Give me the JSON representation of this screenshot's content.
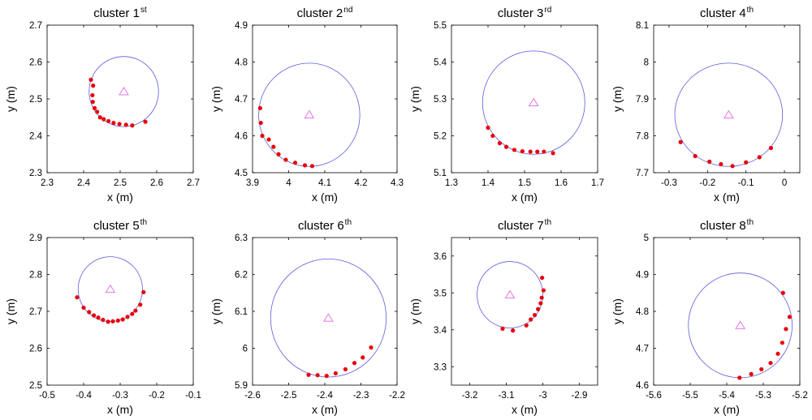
{
  "colors": {
    "point": "#e8000b",
    "circle": "#5b5bdc",
    "center": "#e066e0",
    "axis": "#000000"
  },
  "chart_data": [
    {
      "type": "scatter",
      "title": "cluster 1",
      "title_sup": "st",
      "xlabel": "x (m)",
      "ylabel": "y (m)",
      "xlim": [
        2.3,
        2.7
      ],
      "ylim": [
        2.3,
        2.7
      ],
      "xticks": [
        2.3,
        2.4,
        2.5,
        2.6,
        2.7
      ],
      "xtick_labels": [
        "2.3",
        "2.4",
        "2.5",
        "2.6",
        "2.7"
      ],
      "yticks": [
        2.3,
        2.4,
        2.5,
        2.6,
        2.7
      ],
      "ytick_labels": [
        "2.3",
        "2.4",
        "2.5",
        "2.6",
        "2.7"
      ],
      "circle": {
        "cx": 2.51,
        "cy": 2.52,
        "r": 0.095
      },
      "points": [
        [
          2.42,
          2.552
        ],
        [
          2.426,
          2.536
        ],
        [
          2.424,
          2.51
        ],
        [
          2.425,
          2.492
        ],
        [
          2.43,
          2.475
        ],
        [
          2.437,
          2.465
        ],
        [
          2.445,
          2.45
        ],
        [
          2.455,
          2.445
        ],
        [
          2.468,
          2.44
        ],
        [
          2.482,
          2.435
        ],
        [
          2.498,
          2.432
        ],
        [
          2.516,
          2.43
        ],
        [
          2.533,
          2.428
        ],
        [
          2.569,
          2.438
        ]
      ]
    },
    {
      "type": "scatter",
      "title": "cluster 2",
      "title_sup": "nd",
      "xlabel": "x (m)",
      "ylabel": "y (m)",
      "xlim": [
        3.9,
        4.3
      ],
      "ylim": [
        4.5,
        4.9
      ],
      "xticks": [
        3.9,
        4.0,
        4.1,
        4.2,
        4.3
      ],
      "xtick_labels": [
        "3.9",
        "4",
        "4.1",
        "4.2",
        "4.3"
      ],
      "yticks": [
        4.5,
        4.6,
        4.7,
        4.8,
        4.9
      ],
      "ytick_labels": [
        "4.5",
        "4.6",
        "4.7",
        "4.8",
        "4.9"
      ],
      "circle": {
        "cx": 4.057,
        "cy": 4.657,
        "r": 0.14
      },
      "points": [
        [
          3.921,
          4.675
        ],
        [
          3.923,
          4.635
        ],
        [
          3.927,
          4.6
        ],
        [
          3.945,
          4.59
        ],
        [
          3.958,
          4.57
        ],
        [
          3.972,
          4.55
        ],
        [
          3.992,
          4.535
        ],
        [
          4.018,
          4.527
        ],
        [
          4.045,
          4.52
        ],
        [
          4.065,
          4.518
        ]
      ]
    },
    {
      "type": "scatter",
      "title": "cluster 3",
      "title_sup": "rd",
      "xlabel": "x (m)",
      "ylabel": "y (m)",
      "xlim": [
        1.3,
        1.7
      ],
      "ylim": [
        5.1,
        5.5
      ],
      "xticks": [
        1.3,
        1.4,
        1.5,
        1.6,
        1.7
      ],
      "xtick_labels": [
        "1.3",
        "1.4",
        "1.5",
        "1.6",
        "1.7"
      ],
      "yticks": [
        5.1,
        5.2,
        5.3,
        5.4,
        5.5
      ],
      "ytick_labels": [
        "5.1",
        "5.2",
        "5.3",
        "5.4",
        "5.5"
      ],
      "circle": {
        "cx": 1.525,
        "cy": 5.29,
        "r": 0.14
      },
      "points": [
        [
          1.4,
          5.222
        ],
        [
          1.413,
          5.2
        ],
        [
          1.432,
          5.18
        ],
        [
          1.45,
          5.17
        ],
        [
          1.472,
          5.162
        ],
        [
          1.494,
          5.158
        ],
        [
          1.516,
          5.157
        ],
        [
          1.535,
          5.157
        ],
        [
          1.553,
          5.157
        ],
        [
          1.578,
          5.153
        ]
      ]
    },
    {
      "type": "scatter",
      "title": "cluster 4",
      "title_sup": "th",
      "xlabel": "x (m)",
      "ylabel": "y (m)",
      "xlim": [
        -0.34,
        0.04
      ],
      "ylim": [
        7.7,
        8.1
      ],
      "xticks": [
        -0.3,
        -0.2,
        -0.1,
        0.0
      ],
      "xtick_labels": [
        "-0.3",
        "-0.2",
        "-0.1",
        "0"
      ],
      "yticks": [
        7.7,
        7.8,
        7.9,
        8.0,
        8.1
      ],
      "ytick_labels": [
        "7.7",
        "7.8",
        "7.9",
        "8",
        "8.1"
      ],
      "circle": {
        "cx": -0.145,
        "cy": 7.857,
        "r": 0.14
      },
      "points": [
        [
          -0.27,
          7.783
        ],
        [
          -0.232,
          7.745
        ],
        [
          -0.195,
          7.73
        ],
        [
          -0.165,
          7.723
        ],
        [
          -0.135,
          7.718
        ],
        [
          -0.1,
          7.728
        ],
        [
          -0.065,
          7.742
        ],
        [
          -0.035,
          7.767
        ]
      ]
    },
    {
      "type": "scatter",
      "title": "cluster 5",
      "title_sup": "th",
      "xlabel": "x (m)",
      "ylabel": "y (m)",
      "xlim": [
        -0.5,
        -0.1
      ],
      "ylim": [
        2.5,
        2.9
      ],
      "xticks": [
        -0.5,
        -0.4,
        -0.3,
        -0.2,
        -0.1
      ],
      "xtick_labels": [
        "-0.5",
        "-0.4",
        "-0.3",
        "-0.2",
        "-0.1"
      ],
      "yticks": [
        2.5,
        2.6,
        2.7,
        2.8,
        2.9
      ],
      "ytick_labels": [
        "2.5",
        "2.6",
        "2.7",
        "2.8",
        "2.9"
      ],
      "circle": {
        "cx": -0.327,
        "cy": 2.76,
        "r": 0.088
      },
      "points": [
        [
          -0.418,
          2.738
        ],
        [
          -0.4,
          2.71
        ],
        [
          -0.385,
          2.698
        ],
        [
          -0.372,
          2.689
        ],
        [
          -0.36,
          2.683
        ],
        [
          -0.347,
          2.677
        ],
        [
          -0.333,
          2.672
        ],
        [
          -0.32,
          2.673
        ],
        [
          -0.306,
          2.675
        ],
        [
          -0.293,
          2.678
        ],
        [
          -0.28,
          2.685
        ],
        [
          -0.267,
          2.693
        ],
        [
          -0.258,
          2.702
        ],
        [
          -0.245,
          2.718
        ],
        [
          -0.236,
          2.752
        ]
      ]
    },
    {
      "type": "scatter",
      "title": "cluster 6",
      "title_sup": "th",
      "xlabel": "x (m)",
      "ylabel": "y (m)",
      "xlim": [
        -2.6,
        -2.2
      ],
      "ylim": [
        5.9,
        6.3
      ],
      "xticks": [
        -2.6,
        -2.5,
        -2.4,
        -2.3,
        -2.2
      ],
      "xtick_labels": [
        "-2.6",
        "-2.5",
        "-2.4",
        "-2.3",
        "-2.2"
      ],
      "yticks": [
        5.9,
        6.0,
        6.1,
        6.2,
        6.3
      ],
      "ytick_labels": [
        "5.9",
        "6",
        "6.1",
        "6.2",
        "6.3"
      ],
      "circle": {
        "cx": -2.39,
        "cy": 6.082,
        "r": 0.16
      },
      "points": [
        [
          -2.445,
          5.928
        ],
        [
          -2.42,
          5.927
        ],
        [
          -2.395,
          5.925
        ],
        [
          -2.37,
          5.932
        ],
        [
          -2.343,
          5.943
        ],
        [
          -2.318,
          5.96
        ],
        [
          -2.295,
          5.975
        ],
        [
          -2.272,
          6.002
        ]
      ]
    },
    {
      "type": "scatter",
      "title": "cluster 7",
      "title_sup": "th",
      "xlabel": "x (m)",
      "ylabel": "y (m)",
      "xlim": [
        -3.25,
        -2.85
      ],
      "ylim": [
        3.25,
        3.65
      ],
      "xticks": [
        -3.2,
        -3.1,
        -3.0,
        -2.9
      ],
      "xtick_labels": [
        "-3.2",
        "-3.1",
        "-3",
        "-2.9"
      ],
      "yticks": [
        3.3,
        3.4,
        3.5,
        3.6
      ],
      "ytick_labels": [
        "3.3",
        "3.4",
        "3.5",
        "3.6"
      ],
      "circle": {
        "cx": -3.09,
        "cy": 3.495,
        "r": 0.09
      },
      "points": [
        [
          -3.11,
          3.403
        ],
        [
          -3.082,
          3.398
        ],
        [
          -3.045,
          3.412
        ],
        [
          -3.033,
          3.428
        ],
        [
          -3.022,
          3.44
        ],
        [
          -3.013,
          3.456
        ],
        [
          -3.006,
          3.472
        ],
        [
          -3.003,
          3.487
        ],
        [
          -2.998,
          3.507
        ],
        [
          -3.002,
          3.541
        ]
      ]
    },
    {
      "type": "scatter",
      "title": "cluster 8",
      "title_sup": "th",
      "xlabel": "x (m)",
      "ylabel": "y (m)",
      "xlim": [
        -5.6,
        -5.2
      ],
      "ylim": [
        4.6,
        5.0
      ],
      "xticks": [
        -5.6,
        -5.5,
        -5.4,
        -5.3,
        -5.2
      ],
      "xtick_labels": [
        "-5.6",
        "-5.5",
        "-5.4",
        "-5.3",
        "-5.2"
      ],
      "yticks": [
        4.6,
        4.7,
        4.8,
        4.9,
        5.0
      ],
      "ytick_labels": [
        "4.6",
        "4.7",
        "4.8",
        "4.9",
        "5"
      ],
      "circle": {
        "cx": -5.363,
        "cy": 4.762,
        "r": 0.142
      },
      "points": [
        [
          -5.365,
          4.62
        ],
        [
          -5.333,
          4.63
        ],
        [
          -5.305,
          4.643
        ],
        [
          -5.28,
          4.66
        ],
        [
          -5.26,
          4.685
        ],
        [
          -5.248,
          4.715
        ],
        [
          -5.238,
          4.752
        ],
        [
          -5.228,
          4.785
        ],
        [
          -5.246,
          4.85
        ]
      ]
    }
  ]
}
